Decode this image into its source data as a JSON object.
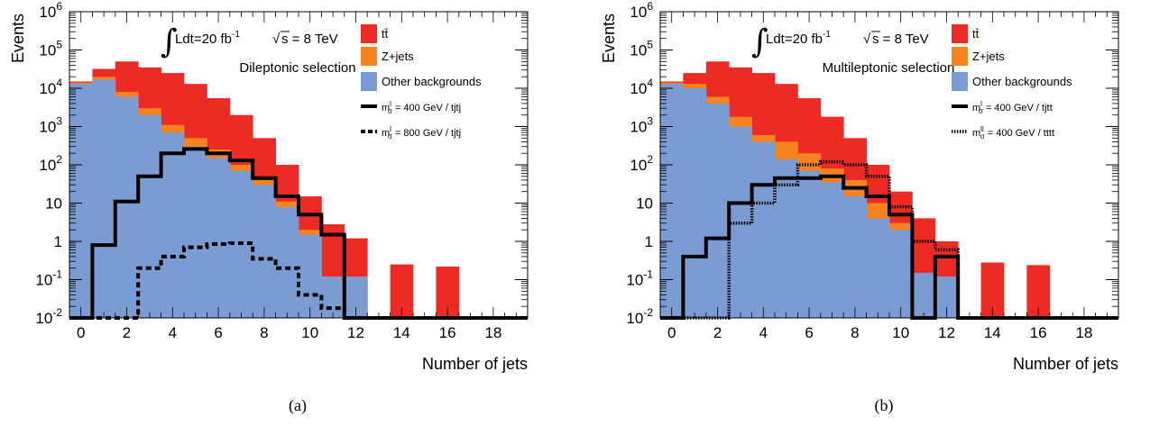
{
  "colors": {
    "ttbar": "#ee2a24",
    "zjets": "#f7831f",
    "other": "#7b9cd2",
    "signal": "#000000"
  },
  "chart_data": [
    {
      "type": "bar",
      "caption": "(a)",
      "title": "",
      "xlabel": "Number of jets",
      "ylabel": "Events",
      "log_y": true,
      "xlim": [
        -0.5,
        19.5
      ],
      "ylim": [
        0.01,
        1000000
      ],
      "x_ticks": [
        "0",
        "2",
        "4",
        "6",
        "8",
        "10",
        "12",
        "14",
        "16",
        "18"
      ],
      "y_ticks": [
        "10^-2",
        "10^-1",
        "1",
        "10",
        "10^2",
        "10^3",
        "10^4",
        "10^5",
        "10^6"
      ],
      "legend_position": "top-right",
      "annotations": {
        "lumi": "Ldt=20 fb",
        "lumi_exp": "-1",
        "energy": "s = 8 TeV",
        "selection": "Dileptonic selection"
      },
      "legend": [
        {
          "label": "tt̄",
          "key": "ttbar",
          "style": "fill"
        },
        {
          "label": "Z+jets",
          "key": "zjets",
          "style": "fill"
        },
        {
          "label": "Other backgrounds",
          "key": "other",
          "style": "fill"
        },
        {
          "label": "m",
          "sup": "l",
          "sub": "σ",
          "rest": " = 400 GeV / tjtj",
          "style": "solid"
        },
        {
          "label": "m",
          "sup": "l",
          "sub": "σ",
          "rest": " = 800 GeV / tjtj",
          "style": "dashed"
        }
      ],
      "bins": [
        0,
        1,
        2,
        3,
        4,
        5,
        6,
        7,
        8,
        9,
        10,
        11,
        12,
        13,
        14,
        15,
        16,
        17,
        18,
        19
      ],
      "stack": {
        "other": [
          13000,
          17000,
          6000,
          2000,
          700,
          300,
          150,
          70,
          30,
          8,
          1.5,
          0.12,
          0.12,
          0,
          0,
          0,
          0,
          0,
          0,
          0
        ],
        "zjets": [
          14000,
          20000,
          8000,
          3000,
          1100,
          500,
          250,
          100,
          40,
          11,
          2,
          0.12,
          0.12,
          0,
          0,
          0,
          0,
          0,
          0,
          0
        ],
        "ttbar": [
          15000,
          32000,
          50000,
          35000,
          25000,
          13000,
          5500,
          2000,
          500,
          100,
          15,
          2.8,
          1.2,
          0,
          0.25,
          0,
          0.22,
          0,
          0,
          0
        ]
      },
      "series": [
        {
          "name": "m = 400 GeV / tjtj",
          "style": "solid",
          "values": [
            0.01,
            0.8,
            11,
            50,
            200,
            260,
            200,
            130,
            45,
            15,
            5,
            1.5,
            0.01,
            0.01,
            0.01,
            0.01,
            0.01,
            0.01,
            0.01,
            0.01
          ]
        },
        {
          "name": "m = 800 GeV / tjtj",
          "style": "dashed",
          "values": [
            0.01,
            0.01,
            0.01,
            0.2,
            0.4,
            0.7,
            0.85,
            0.9,
            0.35,
            0.2,
            0.04,
            0.018,
            0.01,
            0.01,
            0.01,
            0.01,
            0.01,
            0.01,
            0.01,
            0.01
          ]
        }
      ]
    },
    {
      "type": "bar",
      "caption": "(b)",
      "title": "",
      "xlabel": "Number of jets",
      "ylabel": "Events",
      "log_y": true,
      "xlim": [
        -0.5,
        19.5
      ],
      "ylim": [
        0.01,
        1000000
      ],
      "x_ticks": [
        "0",
        "2",
        "4",
        "6",
        "8",
        "10",
        "12",
        "14",
        "16",
        "18"
      ],
      "y_ticks": [
        "10^-2",
        "10^-1",
        "1",
        "10",
        "10^2",
        "10^3",
        "10^4",
        "10^5",
        "10^6"
      ],
      "legend_position": "top-right",
      "annotations": {
        "lumi": "Ldt=20 fb",
        "lumi_exp": "-1",
        "energy": "s = 8 TeV",
        "selection": "Multileptonic selection"
      },
      "legend": [
        {
          "label": "tt̄",
          "key": "ttbar",
          "style": "fill"
        },
        {
          "label": "Z+jets",
          "key": "zjets",
          "style": "fill"
        },
        {
          "label": "Other backgrounds",
          "key": "other",
          "style": "fill"
        },
        {
          "label": "m",
          "sup": "l",
          "sub": "σ",
          "rest": " = 400 GeV / tjtt",
          "style": "solid"
        },
        {
          "label": "m",
          "sup": "ll",
          "sub": "σ",
          "rest": " = 400 GeV / tttt",
          "style": "dotted"
        }
      ],
      "bins": [
        0,
        1,
        2,
        3,
        4,
        5,
        6,
        7,
        8,
        9,
        10,
        11,
        12,
        13,
        14,
        15,
        16,
        17,
        18,
        19
      ],
      "stack": {
        "other": [
          13000,
          10000,
          4000,
          1000,
          400,
          140,
          70,
          35,
          15,
          4,
          2,
          0.15,
          0.12,
          0,
          0,
          0,
          0,
          0,
          0,
          0
        ],
        "zjets": [
          14000,
          13000,
          6000,
          1800,
          600,
          400,
          200,
          80,
          40,
          10,
          3,
          0.15,
          0.12,
          0,
          0,
          0,
          0,
          0,
          0,
          0
        ],
        "ttbar": [
          15000,
          25000,
          50000,
          35000,
          25000,
          13000,
          5500,
          1800,
          500,
          100,
          20,
          4,
          1,
          0,
          0.28,
          0,
          0.24,
          0,
          0,
          0
        ]
      },
      "series": [
        {
          "name": "m = 400 GeV / tjtt",
          "style": "solid",
          "values": [
            0.01,
            0.4,
            1.2,
            10,
            30,
            45,
            45,
            50,
            25,
            15,
            5,
            0.01,
            0.4,
            0.01,
            0.01,
            0.01,
            0.01,
            0.01,
            0.01,
            0.01
          ]
        },
        {
          "name": "m = 400 GeV / tttt",
          "style": "dotted",
          "values": [
            0.01,
            0.01,
            0.01,
            3,
            10,
            30,
            100,
            120,
            100,
            50,
            8,
            1,
            0.6,
            0.01,
            0.01,
            0.01,
            0.01,
            0.01,
            0.01,
            0.01
          ]
        }
      ]
    }
  ]
}
